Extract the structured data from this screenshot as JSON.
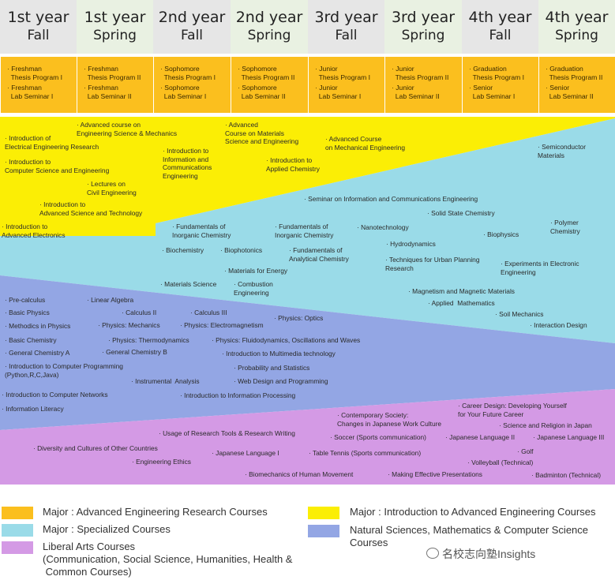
{
  "headers": [
    {
      "year": "1st year",
      "term": "Fall"
    },
    {
      "year": "1st year",
      "term": "Spring"
    },
    {
      "year": "2nd year",
      "term": "Fall"
    },
    {
      "year": "2nd year",
      "term": "Spring"
    },
    {
      "year": "3rd year",
      "term": "Fall"
    },
    {
      "year": "3rd year",
      "term": "Spring"
    },
    {
      "year": "4th year",
      "term": "Fall"
    },
    {
      "year": "4th year",
      "term": "Spring"
    }
  ],
  "research_courses": [
    [
      "· Freshman\n  Thesis Program I",
      "· Freshman\n  Lab Seminar I"
    ],
    [
      "· Freshman\n  Thesis Program II",
      "· Freshman\n  Lab Seminar II"
    ],
    [
      "· Sophomore\n  Thesis Program I",
      "· Sophomore\n  Lab Seminar I"
    ],
    [
      "· Sophomore\n  Thesis Program II",
      "· Sophomore\n  Lab Seminar II"
    ],
    [
      "· Junior\n  Thesis Program I",
      "· Junior\n  Lab Seminar I"
    ],
    [
      "· Junior\n  Thesis Program II",
      "· Junior\n  Lab Seminar II"
    ],
    [
      "· Graduation\n  Thesis Program I",
      "· Senior\n  Lab Seminar I"
    ],
    [
      "· Graduation\n  Thesis Program II",
      "· Senior\n  Lab Seminar II"
    ]
  ],
  "intro_courses": [
    "Introduction of\nElectrical Engineering Research",
    "Advanced course on\nEngineering Science & Mechanics",
    "Advanced\nCourse on Materials\nScience and Engineering",
    "Advanced Course\non Mechanical Engineering",
    "Introduction to\nComputer Science and Engineering",
    "Introduction to\nInformation and\nCommunications\nEngineering",
    "Introduction to\nApplied Chemistry",
    "Lectures on\nCivil Engineering",
    "Introduction to\nAdvanced Science and Technology",
    "Introduction to\nAdvanced Electronics"
  ],
  "specialized_courses": [
    "Semiconductor\nMaterials",
    "Seminar on Information and Communications Engineering",
    "Solid State Chemistry",
    "Polymer\nChemistry",
    "Fundamentals of\nInorganic Chemistry",
    "Fundamentals of\nInorganic Chemistry",
    "Nanotechnology",
    "Biophysics",
    "Hydrodynamics",
    "Biochemistry",
    "Biophotonics",
    "Fundamentals of\nAnalytical Chemistry",
    "Techniques for Urban Planning\nResearch",
    "Experiments in Electronic\nEngineering",
    "Materials for Energy",
    "Materials Science",
    "Combustion\nEngineering",
    "Magnetism and Magnetic Materials",
    "Applied  Mathematics",
    "Soil Mechanics",
    "Interaction Design"
  ],
  "natural_courses": [
    "Pre-calculus",
    "Linear Algebra",
    "Basic Physics",
    "Calculus II",
    "Calculus III",
    "Physics: Optics",
    "Methodics in Physics",
    "Physics: Mechanics",
    "Physics: Electromagnetism",
    "Basic Chemistry",
    "Physics: Thermodynamics",
    "Physics: Fluidodynamics, Oscillations and Waves",
    "General Chemistry A",
    "General Chemistry B",
    "Introduction to Multimedia technology",
    "Introduction to Computer Programming\n(Python,R,C,Java)",
    "Probability and Statistics",
    "Instrumental  Analysis",
    "Web Design and Programming",
    "Introduction to Computer Networks",
    "Introduction to Information Processing",
    "Information Literacy"
  ],
  "liberal_courses": [
    "Career Design: Developing Yourself\nfor Your Future Career",
    "Contemporary Society:\nChanges in Japanese Work Culture",
    "Science and Religion in Japan",
    "Usage of Research Tools & Research Writing",
    "Soccer (Sports communication)",
    "Japanese Language II",
    "Japanese Language III",
    "Diversity and Cultures of Other Countries",
    "Japanese Language I",
    "Table Tennis (Sports communication)",
    "Golf",
    "Engineering Ethics",
    "Volleyball (Technical)",
    "Biomechanics of Human Movement",
    "Making Effective Presentations",
    "Badminton (Technical)"
  ],
  "legend": {
    "orange": "Major : Advanced Engineering Research Courses",
    "yellow": "Major : Introduction to Advanced Engineering Courses",
    "cyan": "Major : Specialized Courses",
    "blue": "Natural Sciences, Mathematics & Computer Science\nCourses",
    "purple": "Liberal Arts Courses\n(Communication, Social Science, Humanities, Health &\n Common Courses)"
  },
  "watermark": "名校志向塾Insights",
  "colors": {
    "orange": "#fbbf1e",
    "yellow": "#fbee05",
    "cyan": "#9adbe8",
    "blue": "#93a6e4",
    "purple": "#d49ae5",
    "header_a": "#e6e6e6",
    "header_b": "#e9f1e2"
  }
}
